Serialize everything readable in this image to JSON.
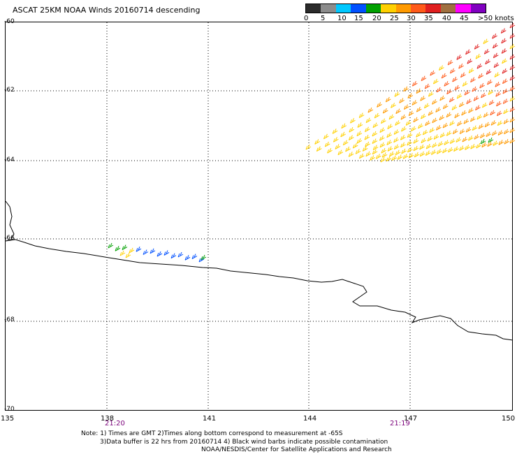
{
  "title": "ASCAT 25KM NOAA Winds 20160714 descending",
  "legend": {
    "colors": [
      "#2b2b2b",
      "#8c8c8c",
      "#00c8ff",
      "#0050ff",
      "#00a000",
      "#ffd000",
      "#ff9a00",
      "#ff5a1a",
      "#e02020",
      "#a07040",
      "#ff00ff",
      "#8000c0"
    ],
    "labels": [
      "0",
      "5",
      "10",
      "15",
      "20",
      "25",
      "30",
      "35",
      "40",
      "45",
      ">50 knots"
    ]
  },
  "axes": {
    "lat_labels": [
      "-60",
      "-62",
      "-64",
      "-66",
      "-68",
      "-70"
    ],
    "lon_labels": [
      "135",
      "138",
      "141",
      "144",
      "147",
      "150"
    ]
  },
  "times": [
    "21:20",
    "21:19"
  ],
  "notes": [
    "Note: 1) Times are GMT 2)Times along bottom correspond to measurement at -65S",
    "3)Data buffer is 22 hrs from 20160714 4) Black wind barbs indicate possible contamination",
    "NOAA/NESDIS/Center for Satellite Applications and Research"
  ],
  "barb_colors": {
    "light": "#ffd000",
    "mid": "#ff9a00",
    "strong": "#ff5a1a",
    "strongest": "#e02020",
    "weak": "#0050ff",
    "weak2": "#00a000"
  }
}
